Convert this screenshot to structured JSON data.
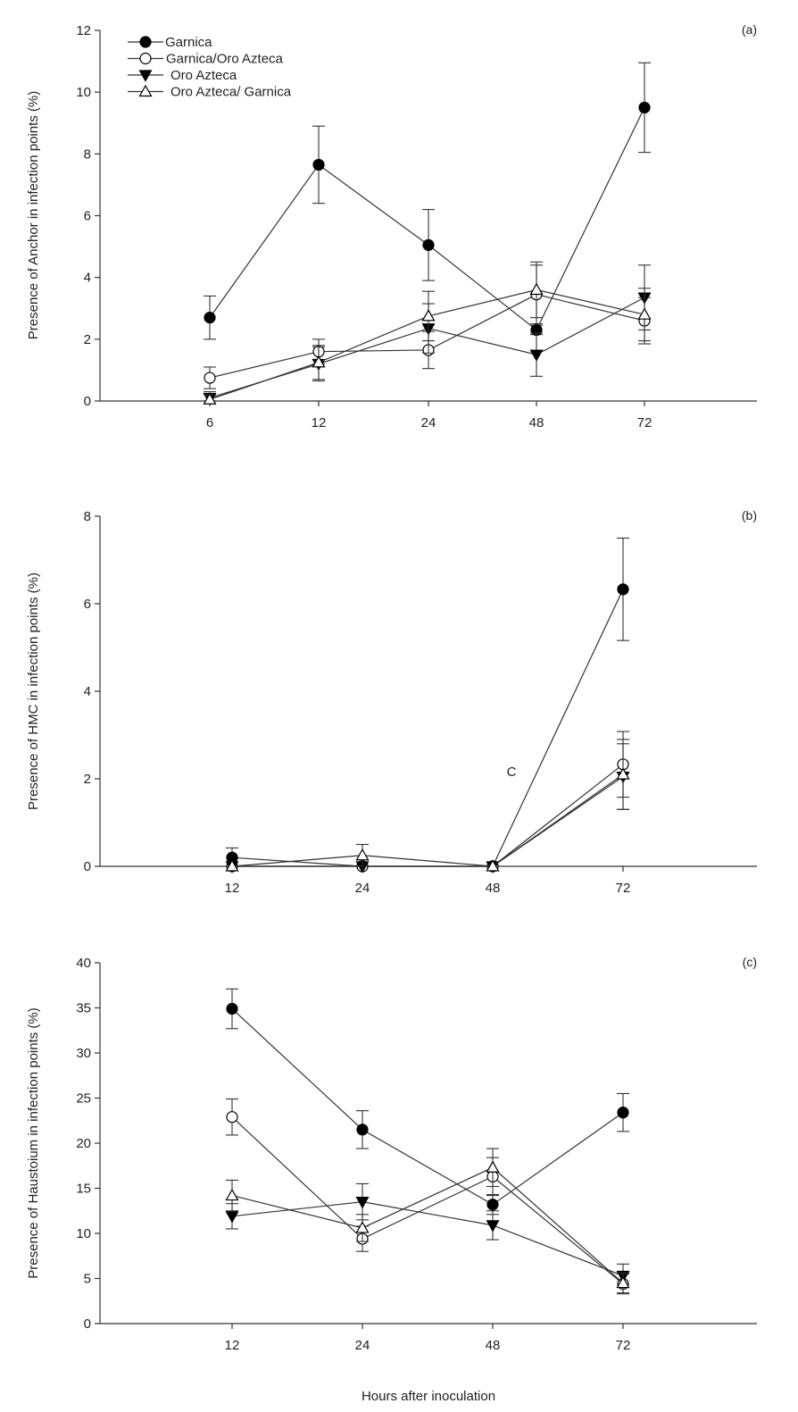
{
  "figure": {
    "x_axis_title": "Hours after inoculation"
  },
  "series_styles": {
    "Garnica": {
      "marker": "circle",
      "fill": "#000000"
    },
    "Garnica/Oro Azteca": {
      "marker": "circle",
      "fill": "#ffffff"
    },
    "Oro Azteca": {
      "marker": "triangle-down",
      "fill": "#000000"
    },
    "Oro Azteca/ Garnica": {
      "marker": "triangle-up",
      "fill": "#ffffff"
    }
  },
  "chart_data": [
    {
      "type": "line",
      "panel_label": "(a)",
      "title": "",
      "xlabel": "",
      "ylabel": "Presence of Anchor in infection points  (%)",
      "categories": [
        "6",
        "12",
        "24",
        "48",
        "72"
      ],
      "ylim": [
        0,
        12
      ],
      "yticks": [
        0,
        2,
        4,
        6,
        8,
        10,
        12
      ],
      "legend": "top-left",
      "series": [
        {
          "name": "Garnica",
          "values": [
            2.7,
            7.65,
            5.05,
            2.3,
            9.5
          ],
          "errors": [
            0.7,
            1.25,
            1.15,
            0.15,
            1.45
          ]
        },
        {
          "name": "Garnica/Oro Azteca",
          "values": [
            0.75,
            1.6,
            1.65,
            3.45,
            2.6
          ],
          "errors": [
            0.35,
            0.4,
            0.6,
            0.95,
            0.75
          ]
        },
        {
          "name": "Oro Azteca",
          "values": [
            0.1,
            1.2,
            2.35,
            1.5,
            3.35
          ],
          "errors": [
            0.2,
            0.55,
            0.8,
            0.7,
            1.05
          ]
        },
        {
          "name": "Oro Azteca/ Garnica",
          "values": [
            0.05,
            1.25,
            2.75,
            3.6,
            2.8
          ],
          "errors": [
            0.15,
            0.55,
            0.8,
            0.9,
            0.85
          ]
        }
      ]
    },
    {
      "type": "line",
      "panel_label": "(b)",
      "title": "",
      "xlabel": "",
      "ylabel": "Presence of HMC in infection points  (%)",
      "categories": [
        "12",
        "24",
        "48",
        "72"
      ],
      "ylim": [
        0,
        8
      ],
      "yticks": [
        0,
        2,
        4,
        6,
        8
      ],
      "annotation": "C",
      "series": [
        {
          "name": "Garnica",
          "values": [
            0.2,
            0,
            0,
            6.33
          ],
          "errors": [
            0.22,
            0,
            0,
            1.17
          ]
        },
        {
          "name": "Garnica/Oro Azteca",
          "values": [
            0,
            0,
            0,
            2.33
          ],
          "errors": [
            0,
            0,
            0,
            0.75
          ]
        },
        {
          "name": "Oro Azteca",
          "values": [
            0,
            0,
            0,
            2.05
          ],
          "errors": [
            0,
            0,
            0,
            0.75
          ]
        },
        {
          "name": "Oro Azteca/ Garnica",
          "values": [
            0,
            0.25,
            0,
            2.1
          ],
          "errors": [
            0,
            0.25,
            0,
            0.8
          ]
        }
      ]
    },
    {
      "type": "line",
      "panel_label": "(c)",
      "title": "",
      "xlabel": "Hours after inoculation",
      "ylabel": "Presence of Haustoium in infection points  (%)",
      "categories": [
        "12",
        "24",
        "48",
        "72"
      ],
      "ylim": [
        0,
        40
      ],
      "yticks": [
        0,
        5,
        10,
        15,
        20,
        25,
        30,
        35,
        40
      ],
      "series": [
        {
          "name": "Garnica",
          "values": [
            34.9,
            21.5,
            13.2,
            23.4
          ],
          "errors": [
            2.2,
            2.1,
            1.1,
            2.1
          ]
        },
        {
          "name": "Garnica/Oro Azteca",
          "values": [
            22.9,
            9.4,
            16.3,
            4.4
          ],
          "errors": [
            2.0,
            1.4,
            2.1,
            1.1
          ]
        },
        {
          "name": "Oro Azteca",
          "values": [
            11.9,
            13.5,
            10.9,
            5.3
          ],
          "errors": [
            1.4,
            2.0,
            1.6,
            1.3
          ]
        },
        {
          "name": "Oro Azteca/ Garnica",
          "values": [
            14.2,
            10.6,
            17.3,
            4.5
          ],
          "errors": [
            1.7,
            1.5,
            2.1,
            1.1
          ]
        }
      ]
    }
  ]
}
